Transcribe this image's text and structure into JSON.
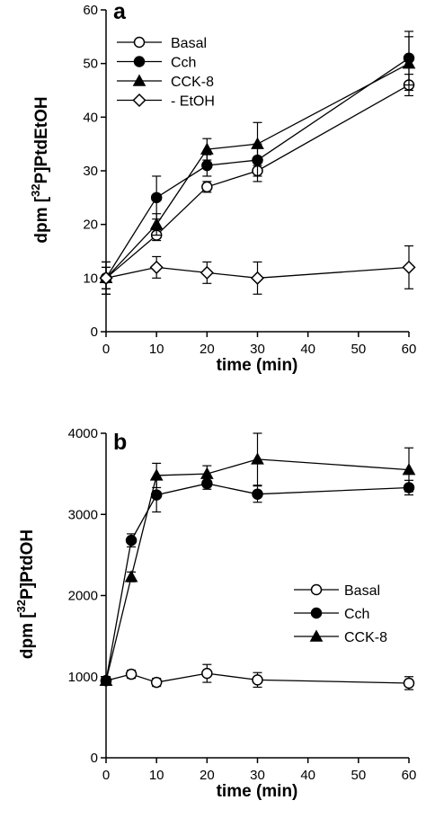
{
  "chart_data": [
    {
      "panel_label": "a",
      "type": "line",
      "xlabel": "time (min)",
      "ylabel_parts": [
        "dpm [",
        "32",
        "P]PtdEtOH"
      ],
      "xlim": [
        0,
        60
      ],
      "ylim": [
        0,
        60
      ],
      "xticks": [
        0,
        10,
        20,
        30,
        40,
        50,
        60
      ],
      "yticks": [
        0,
        10,
        20,
        30,
        40,
        50,
        60
      ],
      "legend_position": "top-left",
      "series": [
        {
          "name": "Basal",
          "marker": "circle-open",
          "x": [
            0,
            10,
            20,
            30,
            60
          ],
          "y": [
            10,
            18,
            27,
            30,
            46
          ],
          "err": [
            3,
            1,
            1,
            2,
            2
          ]
        },
        {
          "name": "Cch",
          "marker": "circle-filled",
          "x": [
            0,
            10,
            20,
            30,
            60
          ],
          "y": [
            10,
            25,
            31,
            32,
            51
          ],
          "err": [
            2,
            4,
            2,
            3,
            5
          ]
        },
        {
          "name": "CCK-8",
          "marker": "triangle-filled",
          "x": [
            0,
            10,
            20,
            30,
            60
          ],
          "y": [
            10,
            20,
            34,
            35,
            50
          ],
          "err": [
            2,
            2,
            2,
            4,
            5
          ]
        },
        {
          "name": "- EtOH",
          "marker": "diamond-open",
          "x": [
            0,
            10,
            20,
            30,
            60
          ],
          "y": [
            10,
            12,
            11,
            10,
            12
          ],
          "err": [
            3,
            2,
            2,
            3,
            4
          ]
        }
      ]
    },
    {
      "panel_label": "b",
      "type": "line",
      "xlabel": "time (min)",
      "ylabel_parts": [
        "dpm [",
        "32",
        "P]PtdOH"
      ],
      "xlim": [
        0,
        60
      ],
      "ylim": [
        0,
        4000
      ],
      "xticks": [
        0,
        10,
        20,
        30,
        40,
        50,
        60
      ],
      "yticks": [
        0,
        1000,
        2000,
        3000,
        4000
      ],
      "legend_position": "center-right",
      "series": [
        {
          "name": "Basal",
          "marker": "circle-open",
          "x": [
            0,
            5,
            10,
            20,
            30,
            60
          ],
          "y": [
            950,
            1030,
            930,
            1040,
            960,
            920
          ],
          "err": [
            50,
            50,
            50,
            110,
            90,
            80
          ]
        },
        {
          "name": "Cch",
          "marker": "circle-filled",
          "x": [
            0,
            5,
            10,
            20,
            30,
            60
          ],
          "y": [
            950,
            2680,
            3240,
            3380,
            3250,
            3330
          ],
          "err": [
            50,
            80,
            210,
            70,
            100,
            90
          ]
        },
        {
          "name": "CCK-8",
          "marker": "triangle-filled",
          "x": [
            0,
            5,
            10,
            20,
            30,
            60
          ],
          "y": [
            950,
            2230,
            3480,
            3500,
            3680,
            3550
          ],
          "err": [
            50,
            60,
            150,
            100,
            320,
            270
          ]
        }
      ]
    }
  ]
}
